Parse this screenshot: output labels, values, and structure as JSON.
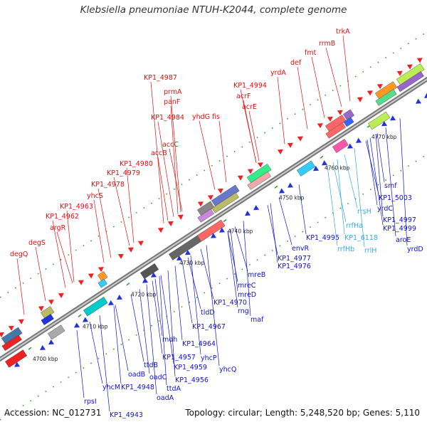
{
  "title": "Klebsiella pneumoniae NTUH-K2044, complete genome",
  "footer": {
    "accession": "Accession: NC_012731",
    "topology": "Topology: circular; Length: 5,248,520 bp; Genes: 5,110"
  },
  "colors": {
    "forward_label": "#dd1111",
    "reverse_label": "#1111cc",
    "rrna_label": "#33aadd",
    "axis": "#888888",
    "tick": "#229922"
  },
  "scale_ticks": [
    "4700 kbp",
    "4710 kbp",
    "4720 kbp",
    "4730 kbp",
    "4740 kbp",
    "4750 kbp",
    "4760 kbp",
    "4770 kbp"
  ],
  "upper_labels": [
    "degQ",
    "degS",
    "KP1_4962",
    "argR",
    "KP1_4963",
    "yhcS",
    "KP1_4978",
    "KP1_4979",
    "KP1_4980",
    "accB",
    "accC",
    "KP1_4984",
    "panF",
    "prmA",
    "KP1_4987",
    "yhdG",
    "fis",
    "acrE",
    "acrF",
    "KP1_4994",
    "yrdA",
    "def",
    "fmt",
    "rrmB",
    "trkA"
  ],
  "lower_labels": [
    "rpsI",
    "KP1_4943",
    "yhcM",
    "KP1_4948",
    "oadA",
    "oadB",
    "ttdA",
    "oadC",
    "ttdB",
    "KP1_4956",
    "KP1_4957",
    "KP1_4959",
    "mdh",
    "yhcP",
    "yhcQ",
    "KP1_4964",
    "KP1_4967",
    "tldD",
    "maf",
    "rng",
    "KP1_4970",
    "mreD",
    "mreC",
    "mreB",
    "KP1_4976",
    "KP1_4977",
    "envR",
    "KP1_4995",
    "rrfHb",
    "rrfHa",
    "KP1_6118",
    "rrlH",
    "rrsH",
    "yrdD",
    "aroE",
    "KP1_4999",
    "KP1_4997",
    "yrdC",
    "KP1_5003",
    "smf"
  ],
  "rrna_labels": [
    "rrfHb",
    "rrfHa",
    "KP1_6118",
    "rrlH",
    "rrsH"
  ]
}
